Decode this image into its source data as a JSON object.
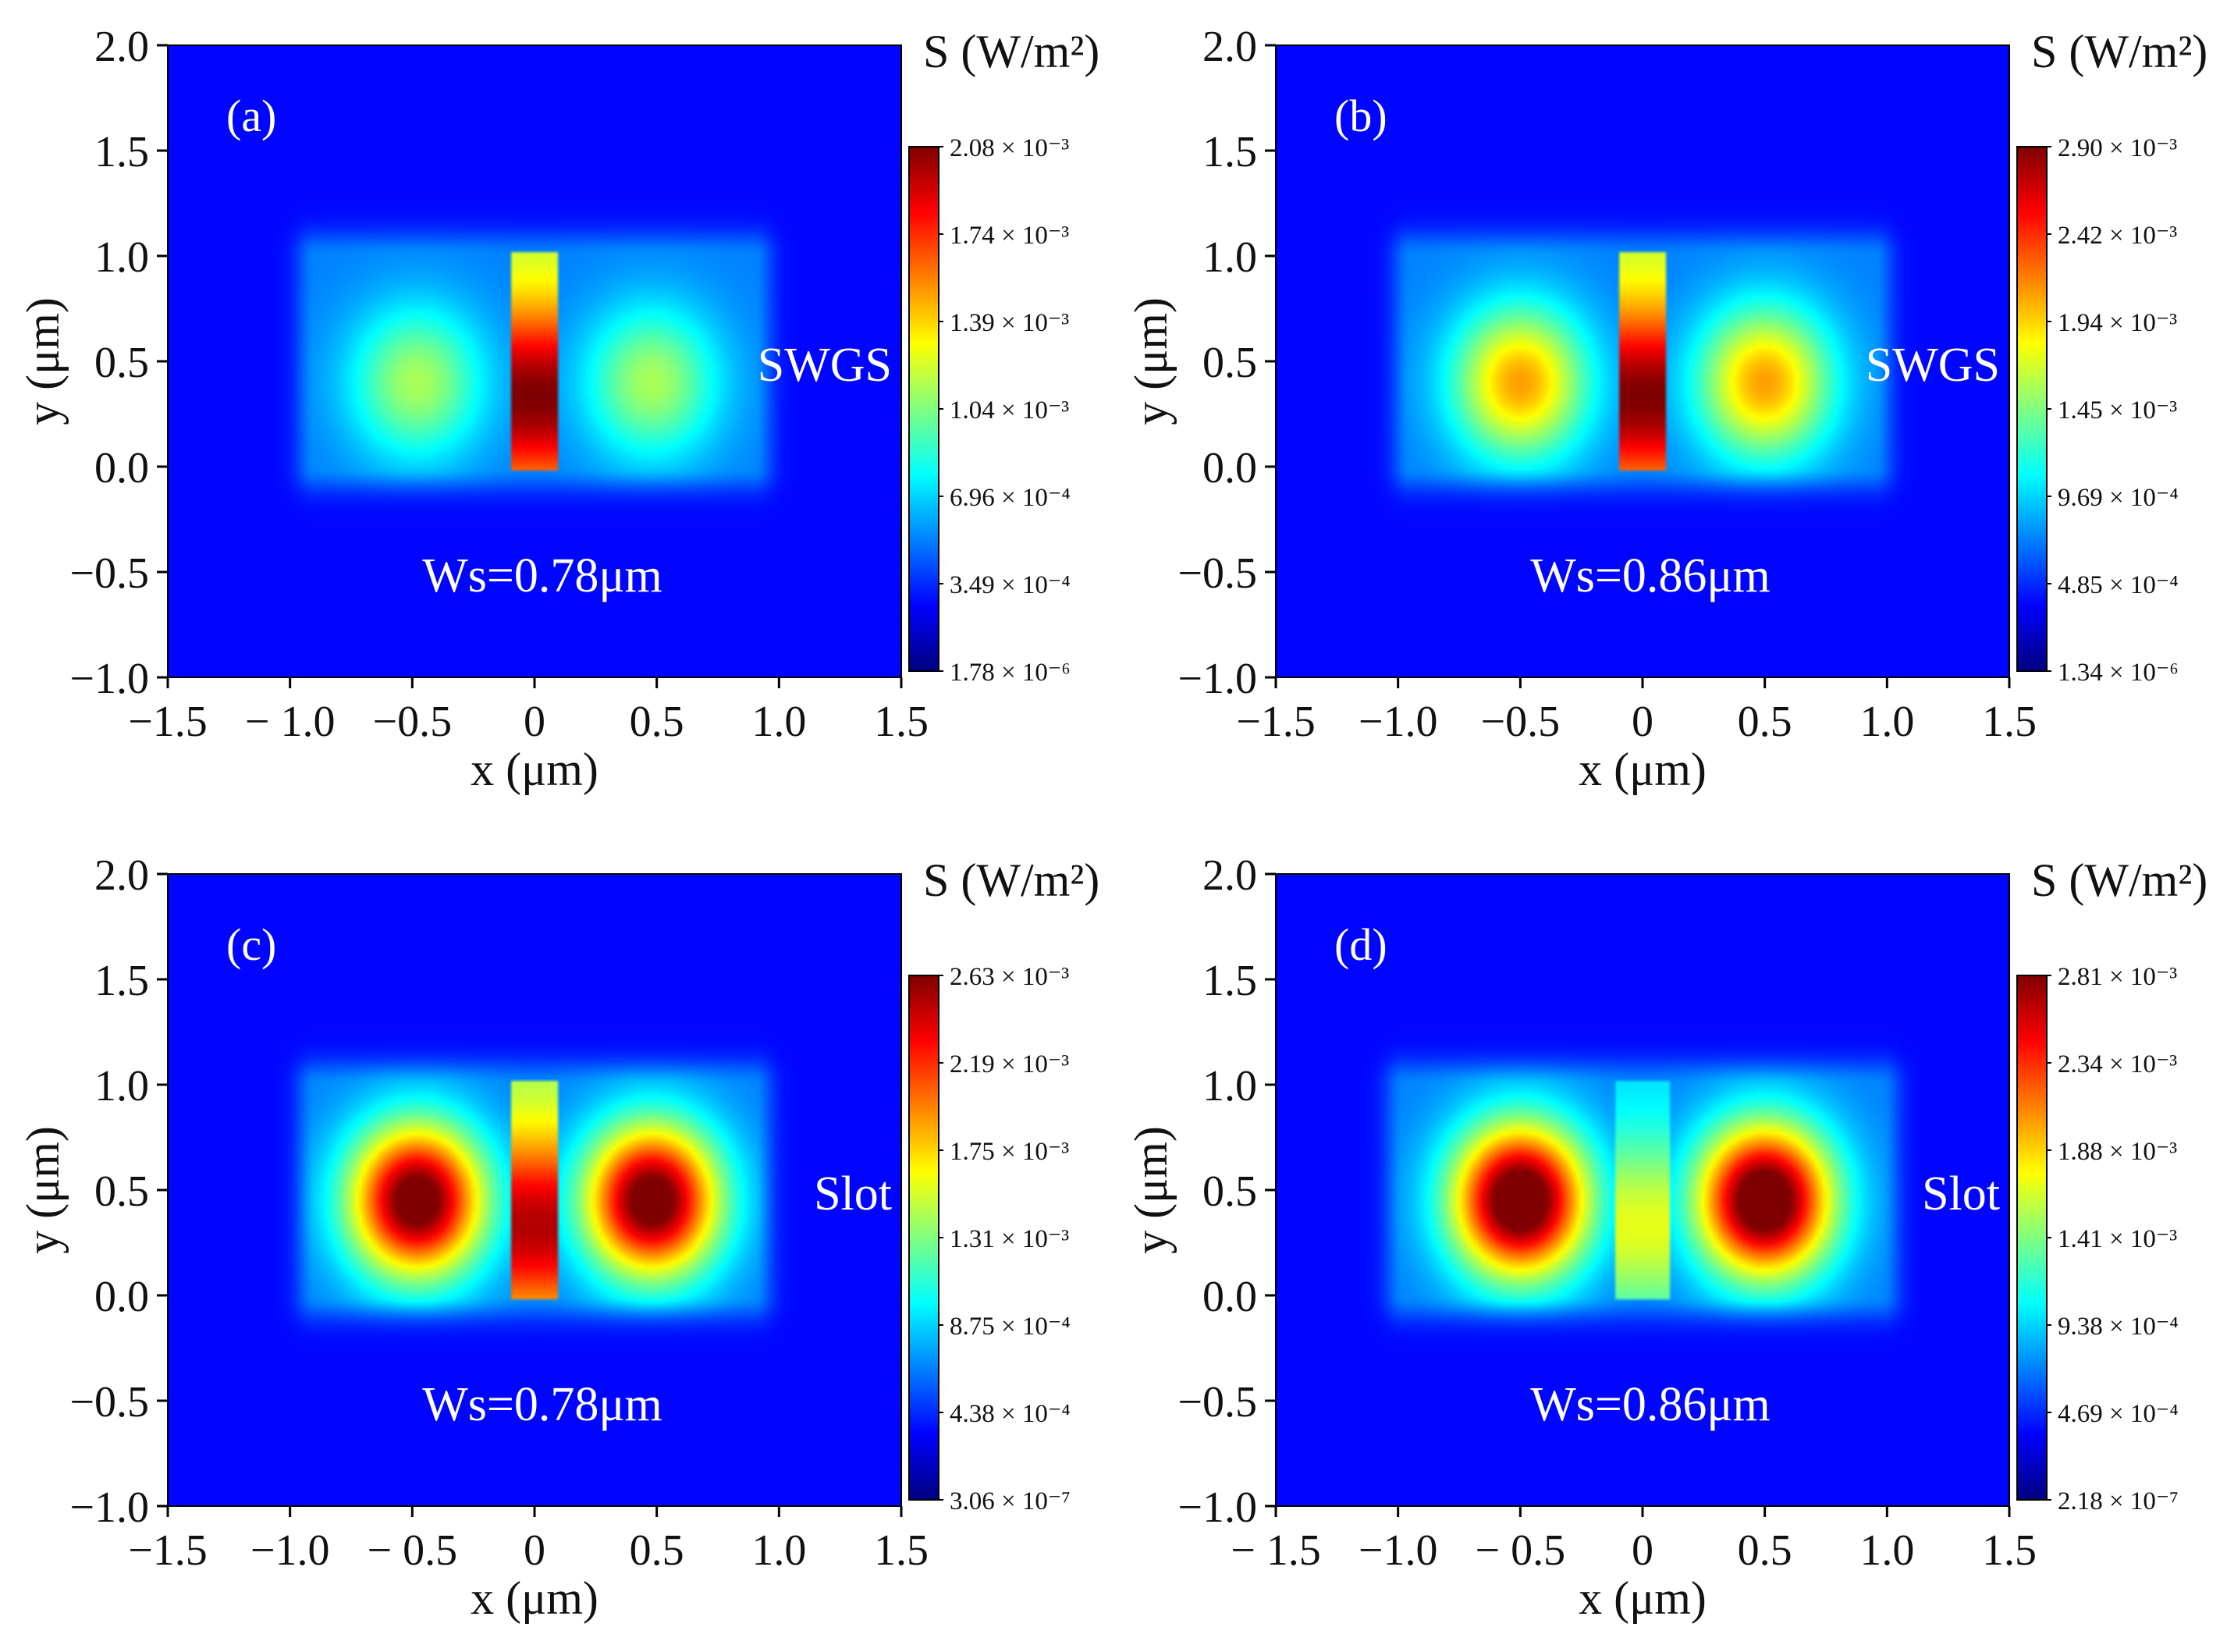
{
  "figure": {
    "x_axis_label": "x (μm)",
    "y_axis_label": "y (μm)",
    "colorbar_title": "S (W/m²)",
    "colormap": "jet",
    "colormap_colors": [
      "#00007f",
      "#0000ff",
      "#0080ff",
      "#00ffff",
      "#80ff80",
      "#ffff00",
      "#ff8000",
      "#ff0000",
      "#7f0000"
    ]
  },
  "chart_data": [
    {
      "type": "heatmap",
      "panel_label": "(a)",
      "structure_label": "SWGS",
      "width_label": "Ws=0.78μm",
      "xlabel": "x (μm)",
      "ylabel": "y (μm)",
      "xlim": [
        -1.5,
        1.5
      ],
      "ylim": [
        -1.0,
        2.0
      ],
      "xticks": [
        "−1.5",
        "− 1.0",
        "−0.5",
        "0",
        "0.5",
        "1.0",
        "1.5"
      ],
      "yticks": [
        "2.0",
        "1.5",
        "1.0",
        "0.5",
        "0.0",
        "−0.5",
        "−1.0"
      ],
      "colorbar_label": "S (W/m²)",
      "colorbar_ticks": [
        "2.08 × 10⁻³",
        "1.74 × 10⁻³",
        "1.39 × 10⁻³",
        "1.04 × 10⁻³",
        "6.96 × 10⁻⁴",
        "3.49 × 10⁻⁴",
        "1.78 × 10⁻⁶"
      ],
      "colorbar_range": [
        1.78e-06,
        0.00208
      ],
      "field": {
        "slot_center_x": 0.0,
        "slot_half_width": 0.1,
        "core_y": [
          0.0,
          1.0
        ],
        "rail_center_x": 0.48,
        "rail_center_y": 0.4,
        "slot_peak": 1.0,
        "rail_peak": 0.42,
        "guide_half_width": 0.9
      }
    },
    {
      "type": "heatmap",
      "panel_label": "(b)",
      "structure_label": "SWGS",
      "width_label": "Ws=0.86μm",
      "xlabel": "x (μm)",
      "ylabel": "y (μm)",
      "xlim": [
        -1.5,
        1.5
      ],
      "ylim": [
        -1.0,
        2.0
      ],
      "xticks": [
        "−1.5",
        "−1.0",
        "−0.5",
        "0",
        "0.5",
        "1.0",
        "1.5"
      ],
      "yticks": [
        "2.0",
        "1.5",
        "1.0",
        "0.5",
        "0.0",
        "−0.5",
        "−1.0"
      ],
      "colorbar_label": "S (W/m²)",
      "colorbar_ticks": [
        "2.90 × 10⁻³",
        "2.42 × 10⁻³",
        "1.94 × 10⁻³",
        "1.45 × 10⁻³",
        "9.69 × 10⁻⁴",
        "4.85 × 10⁻⁴",
        "1.34 × 10⁻⁶"
      ],
      "colorbar_range": [
        1.34e-06,
        0.0029
      ],
      "field": {
        "slot_center_x": 0.0,
        "slot_half_width": 0.1,
        "core_y": [
          0.0,
          1.0
        ],
        "rail_center_x": 0.5,
        "rail_center_y": 0.4,
        "slot_peak": 1.0,
        "rail_peak": 0.6,
        "guide_half_width": 0.95
      }
    },
    {
      "type": "heatmap",
      "panel_label": "(c)",
      "structure_label": "Slot",
      "width_label": "Ws=0.78μm",
      "xlabel": "x (μm)",
      "ylabel": "y (μm)",
      "xlim": [
        -1.5,
        1.5
      ],
      "ylim": [
        -1.0,
        2.0
      ],
      "xticks": [
        "−1.5",
        "−1.0",
        "− 0.5",
        "0",
        "0.5",
        "1.0",
        "1.5"
      ],
      "yticks": [
        "2.0",
        "1.5",
        "1.0",
        "0.5",
        "0.0",
        "−0.5",
        "−1.0"
      ],
      "colorbar_label": "S (W/m²)",
      "colorbar_ticks": [
        "2.63 × 10⁻³",
        "2.19 × 10⁻³",
        "1.75 × 10⁻³",
        "1.31 × 10⁻³",
        "8.75 × 10⁻⁴",
        "4.38 × 10⁻⁴",
        "3.06 × 10⁻⁷"
      ],
      "colorbar_range": [
        3.06e-07,
        0.00263
      ],
      "field": {
        "slot_center_x": 0.0,
        "slot_half_width": 0.1,
        "core_y": [
          0.0,
          1.0
        ],
        "rail_center_x": 0.48,
        "rail_center_y": 0.45,
        "slot_peak": 0.95,
        "rail_peak": 0.95,
        "guide_half_width": 0.9
      }
    },
    {
      "type": "heatmap",
      "panel_label": "(d)",
      "structure_label": "Slot",
      "width_label": "Ws=0.86μm",
      "xlabel": "x (μm)",
      "ylabel": "y (μm)",
      "xlim": [
        -1.5,
        1.5
      ],
      "ylim": [
        -1.0,
        2.0
      ],
      "xticks": [
        "− 1.5",
        "−1.0",
        "− 0.5",
        "0",
        "0.5",
        "1.0",
        "1.5"
      ],
      "yticks": [
        "2.0",
        "1.5",
        "1.0",
        "0.5",
        "0.0",
        "−0.5",
        "−1.0"
      ],
      "colorbar_label": "S (W/m²)",
      "colorbar_ticks": [
        "2.81 × 10⁻³",
        "2.34 × 10⁻³",
        "1.88 × 10⁻³",
        "1.41 × 10⁻³",
        "9.38 × 10⁻⁴",
        "4.69 × 10⁻⁴",
        "2.18 × 10⁻⁷"
      ],
      "colorbar_range": [
        2.18e-07,
        0.00281
      ],
      "field": {
        "slot_center_x": 0.0,
        "slot_half_width": 0.11,
        "core_y": [
          0.0,
          1.0
        ],
        "rail_center_x": 0.5,
        "rail_center_y": 0.45,
        "slot_peak": 0.6,
        "rail_peak": 1.0,
        "guide_half_width": 0.98
      }
    }
  ]
}
